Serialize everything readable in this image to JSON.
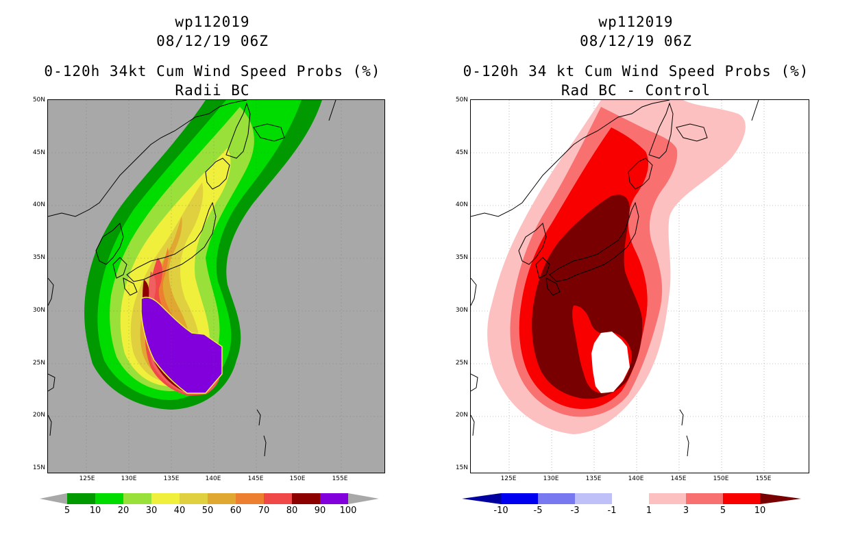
{
  "left_panel": {
    "title_line1": "wp112019",
    "title_line2": "08/12/19 06Z",
    "title_line3": "0-120h 34kt Cum Wind Speed Probs (%)",
    "title_line4": "Radii BC",
    "lat_labels": [
      "50N",
      "45N",
      "40N",
      "35N",
      "30N",
      "25N",
      "20N",
      "15N"
    ],
    "lon_labels": [
      "125E",
      "130E",
      "135E",
      "140E",
      "145E",
      "150E",
      "155E"
    ],
    "colorbar_labels": [
      "5",
      "10",
      "20",
      "30",
      "40",
      "50",
      "60",
      "70",
      "80",
      "90",
      "100"
    ],
    "colorbar_colors": [
      "#009a00",
      "#00dc00",
      "#9ae03a",
      "#f0f03c",
      "#e0d040",
      "#e0a830",
      "#ec8030",
      "#f04848",
      "#8c0000",
      "#8200dc"
    ],
    "background_color": "#a8a8a8"
  },
  "right_panel": {
    "title_line1": "wp112019",
    "title_line2": "08/12/19 06Z",
    "title_line3": "0-120h 34 kt Cum Wind Speed Probs (%)",
    "title_line4": "Rad BC - Control",
    "lat_labels": [
      "50N",
      "45N",
      "40N",
      "35N",
      "30N",
      "25N",
      "20N",
      "15N"
    ],
    "lon_labels": [
      "125E",
      "130E",
      "135E",
      "140E",
      "145E",
      "150E",
      "155E"
    ],
    "colorbar_labels": [
      "-10",
      "-5",
      "-3",
      "-1",
      "1",
      "3",
      "5",
      "10"
    ],
    "colorbar_colors": [
      "#0000a0",
      "#0000f0",
      "#7878f0",
      "#c0c0f8",
      "#ffffff",
      "#fcc0c0",
      "#f87070",
      "#f80000",
      "#780000"
    ],
    "background_color": "#ffffff"
  }
}
